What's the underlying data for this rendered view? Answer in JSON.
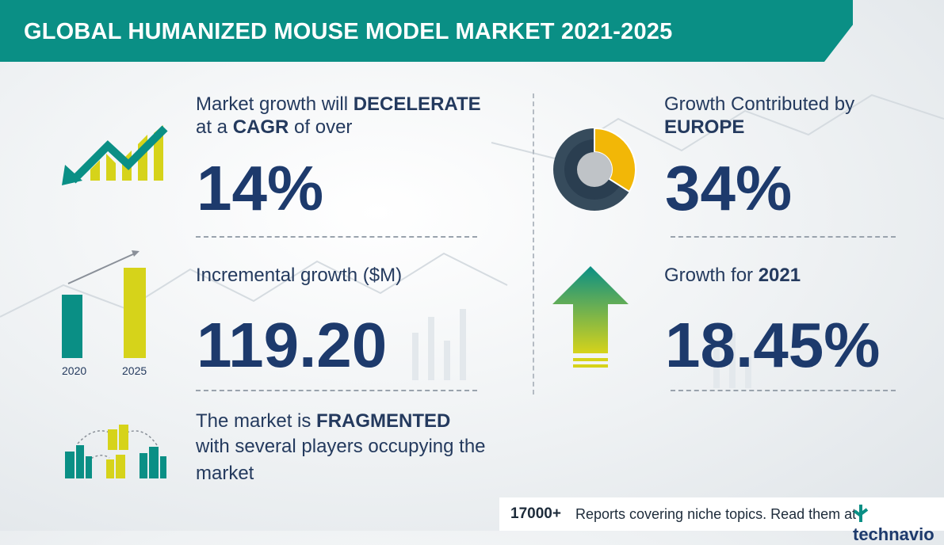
{
  "title": "GLOBAL HUMANIZED MOUSE MODEL MARKET 2021-2025",
  "blocks": {
    "cagr": {
      "line1_pre": "Market growth will ",
      "line1_bold": "DECELERATE",
      "line2_pre": "at a ",
      "line2_bold": "CAGR",
      "line2_post": " of over",
      "value": "14%"
    },
    "incremental": {
      "label": "Incremental growth ($M)",
      "value": "119.20",
      "years": [
        "2020",
        "2025"
      ]
    },
    "fragmented": {
      "line1_pre": "The market is ",
      "line1_bold": "FRAGMENTED",
      "line2": "with several players occupying the",
      "line3": "market"
    },
    "europe": {
      "line1": "Growth Contributed by",
      "line2_bold": "EUROPE",
      "value": "34%",
      "share": 0.34
    },
    "growth2021": {
      "label_pre": "Growth for ",
      "label_bold": "2021",
      "value": "18.45%"
    }
  },
  "footer": {
    "count": "17000+",
    "text": "Reports covering niche topics. Read them at",
    "brand": "technavio"
  },
  "colors": {
    "teal": "#0a8f85",
    "navy": "#1d3a6c",
    "yellow": "#d6d31a",
    "amber": "#f2b707"
  }
}
